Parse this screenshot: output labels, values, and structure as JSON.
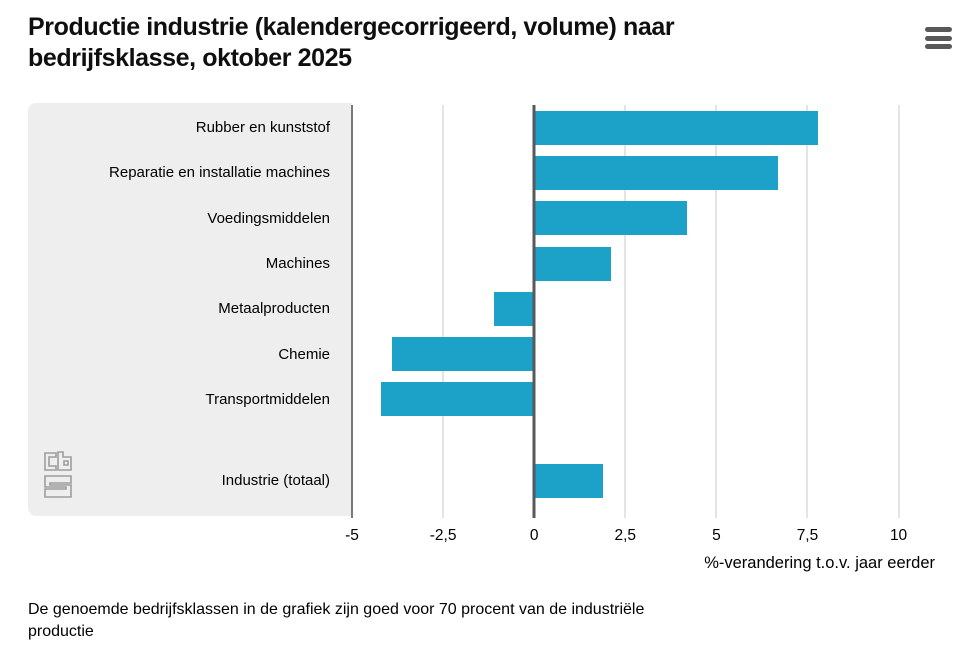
{
  "header": {
    "title": "Productie industrie (kalendergecorrigeerd, volume) naar bedrijfsklasse, oktober 2025",
    "menu_icon": "hamburger-menu"
  },
  "chart_data": {
    "type": "bar",
    "orientation": "horizontal",
    "title": "Productie industrie (kalendergecorrigeerd, volume) naar bedrijfsklasse, oktober 2025",
    "categories": [
      "Rubber en kunststof",
      "Reparatie en installatie machines",
      "Voedingsmiddelen",
      "Machines",
      "Metaalproducten",
      "Chemie",
      "Transportmiddelen",
      "Industrie (totaal)"
    ],
    "values": [
      7.8,
      6.7,
      4.2,
      2.1,
      -1.1,
      -3.9,
      -4.2,
      1.9
    ],
    "separator_before_last": true,
    "xlabel": "%-verandering t.o.v. jaar eerder",
    "ylabel": "",
    "x_ticks": [
      -5,
      -2.5,
      0,
      2.5,
      5,
      7.5,
      10
    ],
    "x_tick_labels": [
      "-5",
      "-2,5",
      "0",
      "2,5",
      "5",
      "7,5",
      "10"
    ],
    "xlim": [
      -5,
      11
    ],
    "grid": true,
    "legend": "none",
    "bar_color": "#1ca1c9",
    "zero_line_color": "#58595b",
    "edge_line_color": "#77787a",
    "grid_color": "#c9c9c9",
    "panel_color": "#eeeeee"
  },
  "footer": {
    "footnote": "De genoemde bedrijfsklassen in de grafiek zijn goed voor 70 procent van de industriële productie",
    "logo": "cbs-logo"
  }
}
